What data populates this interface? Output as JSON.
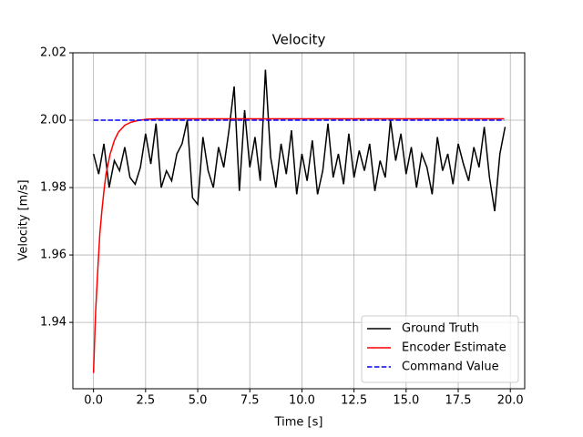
{
  "chart_data": {
    "type": "line",
    "title": "Velocity",
    "x_label": "Time [s]",
    "y_label": "Velocity [m/s]",
    "xlim": [
      -0.99,
      20.69
    ],
    "ylim": [
      1.9203,
      2.02
    ],
    "xticks": [
      {
        "value": 0,
        "label": "0.0"
      },
      2.5,
      {
        "value": 5,
        "label": "5.0"
      },
      7.5,
      {
        "value": 10,
        "label": "10.0"
      },
      12.5,
      {
        "value": 15,
        "label": "15.0"
      },
      17.5,
      {
        "value": 20,
        "label": "20.0"
      }
    ],
    "yticks": [
      1.94,
      1.96,
      1.98,
      {
        "value": 2,
        "label": "2.00"
      },
      2.02
    ],
    "grid": true,
    "legend": "lower right",
    "series": [
      {
        "name": "Ground Truth",
        "color": "#000000",
        "linestyle": "solid",
        "x": [
          0,
          0.25,
          0.5,
          0.75,
          1,
          1.25,
          1.5,
          1.75,
          2,
          2.25,
          2.5,
          2.75,
          3,
          3.25,
          3.5,
          3.75,
          4,
          4.25,
          4.5,
          4.75,
          5,
          5.25,
          5.5,
          5.75,
          6,
          6.25,
          6.5,
          6.75,
          7,
          7.25,
          7.5,
          7.75,
          8,
          8.25,
          8.5,
          8.75,
          9,
          9.25,
          9.5,
          9.75,
          10,
          10.25,
          10.5,
          10.75,
          11,
          11.25,
          11.5,
          11.75,
          12,
          12.25,
          12.5,
          12.75,
          13,
          13.25,
          13.5,
          13.75,
          14,
          14.25,
          14.5,
          14.75,
          15,
          15.25,
          15.5,
          15.75,
          16,
          16.25,
          16.5,
          16.75,
          17,
          17.25,
          17.5,
          17.75,
          18,
          18.25,
          18.5,
          18.75,
          19,
          19.25,
          19.5,
          19.75
        ],
        "values": [
          1.99,
          1.984,
          1.993,
          1.98,
          1.988,
          1.985,
          1.992,
          1.983,
          1.981,
          1.986,
          1.996,
          1.987,
          1.999,
          1.98,
          1.985,
          1.982,
          1.99,
          1.993,
          2.0,
          1.977,
          1.975,
          1.995,
          1.985,
          1.98,
          1.992,
          1.986,
          1.997,
          2.01,
          1.979,
          2.003,
          1.986,
          1.995,
          1.982,
          2.015,
          1.989,
          1.98,
          1.993,
          1.984,
          1.997,
          1.978,
          1.99,
          1.982,
          1.994,
          1.978,
          1.985,
          1.999,
          1.983,
          1.99,
          1.981,
          1.996,
          1.983,
          1.991,
          1.985,
          1.993,
          1.979,
          1.988,
          1.983,
          2.0,
          1.988,
          1.996,
          1.984,
          1.992,
          1.98,
          1.99,
          1.986,
          1.978,
          1.995,
          1.985,
          1.99,
          1.981,
          1.993,
          1.987,
          1.982,
          1.992,
          1.986,
          1.998,
          1.983,
          1.973,
          1.99,
          1.998
        ]
      },
      {
        "name": "Encoder Estimate",
        "color": "#ff0000",
        "linestyle": "solid",
        "x": [
          0,
          0.1,
          0.2,
          0.3,
          0.4,
          0.5,
          0.6,
          0.8,
          1,
          1.2,
          1.5,
          1.8,
          2.2,
          2.6,
          3,
          19.7
        ],
        "values": [
          1.925,
          1.943,
          1.955,
          1.966,
          1.973,
          1.979,
          1.984,
          1.99,
          1.994,
          1.9965,
          1.9985,
          1.9994,
          2.0,
          2.0003,
          2.0004,
          2.0004
        ]
      },
      {
        "name": "Command Value",
        "color": "#0000ff",
        "linestyle": "dashed",
        "x": [
          0,
          19.7
        ],
        "values": [
          2.0,
          2.0
        ]
      }
    ]
  }
}
